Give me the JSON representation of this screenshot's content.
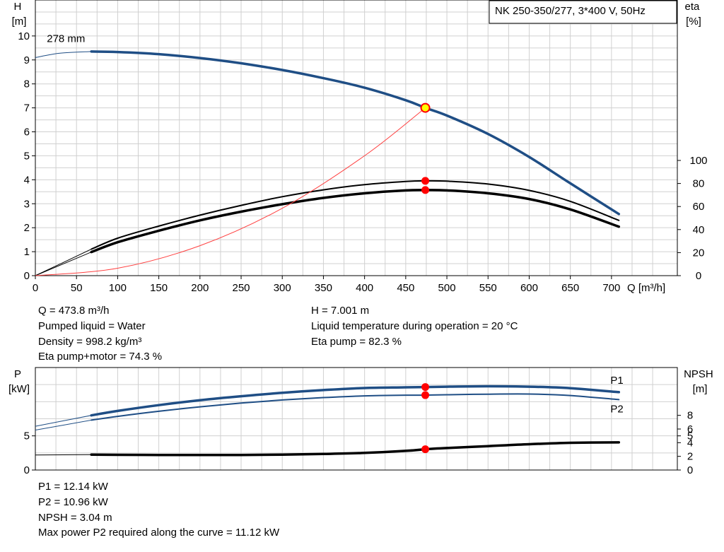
{
  "legend_box": "NK 250-350/277, 3*400 V, 50Hz",
  "info_top_left": [
    "Q = 473.8 m³/h",
    "Pumped liquid = Water",
    "Density = 998.2 kg/m³",
    "Eta pump+motor = 74.3 %"
  ],
  "info_top_right": [
    "H = 7.001 m",
    "Liquid temperature during operation = 20 °C",
    "Eta pump = 82.3 %"
  ],
  "info_bottom": [
    "P1 = 12.14 kW",
    "P2 = 10.96 kW",
    "NPSH = 3.04 m",
    "Max power P2 required along the curve = 11.12 kW"
  ],
  "colors": {
    "head": "#1f4e85",
    "eta": "#000000",
    "system": "#ff4040",
    "duty_point": "#ff0000",
    "duty_fill": "#ffff00",
    "grid": "#d0d0d0"
  },
  "chart_data": [
    {
      "type": "line",
      "title": "",
      "xlabel": "Q [m³/h]",
      "ylabel": "H\n[m]",
      "y2label": "eta\n[%]",
      "xlim": [
        0,
        780
      ],
      "ylim": [
        0,
        11.5
      ],
      "y2lim": [
        0,
        100
      ],
      "xticks": [
        0,
        50,
        100,
        150,
        200,
        250,
        300,
        350,
        400,
        450,
        500,
        550,
        600,
        650,
        700
      ],
      "yticks": [
        0,
        1,
        2,
        3,
        4,
        5,
        6,
        7,
        8,
        9,
        10
      ],
      "y2ticks": [
        0,
        20,
        40,
        60,
        80,
        100
      ],
      "grid": true,
      "annotations": [
        {
          "text": "278 mm",
          "x": 38,
          "y": 9.75
        }
      ],
      "series": [
        {
          "name": "",
          "role": "head",
          "axis": "left",
          "x": [
            0,
            30,
            68,
            100,
            150,
            200,
            250,
            300,
            350,
            400,
            450,
            473.8,
            500,
            550,
            600,
            650,
            709
          ],
          "y": [
            9.1,
            9.28,
            9.35,
            9.33,
            9.24,
            9.08,
            8.86,
            8.58,
            8.24,
            7.84,
            7.32,
            7.0,
            6.68,
            5.91,
            4.95,
            3.85,
            2.57
          ],
          "thin_until_x": 68
        },
        {
          "name": "",
          "role": "eta_pump",
          "axis": "right",
          "x": [
            0,
            68,
            100,
            150,
            200,
            250,
            300,
            350,
            400,
            450,
            473.8,
            500,
            550,
            600,
            650,
            709
          ],
          "y": [
            0,
            23,
            32.5,
            43,
            52.5,
            61,
            68.5,
            74.5,
            79,
            81.8,
            82.3,
            82,
            79.5,
            74,
            64.5,
            48
          ],
          "thin_until_x": 68
        },
        {
          "name": "",
          "role": "eta_pump_motor",
          "axis": "right",
          "x": [
            0,
            68,
            100,
            150,
            200,
            250,
            300,
            350,
            400,
            450,
            473.8,
            500,
            550,
            600,
            650,
            709
          ],
          "y": [
            0,
            20.5,
            29,
            39,
            48,
            55.5,
            62,
            67.5,
            71.5,
            74,
            74.3,
            74,
            71.5,
            66.5,
            57.5,
            42.5
          ],
          "thin_until_x": 68
        },
        {
          "name": "",
          "role": "system",
          "axis": "left",
          "x": [
            0,
            100,
            200,
            300,
            400,
            473.8
          ],
          "y": [
            0,
            0.31,
            1.25,
            2.81,
            5.0,
            7.0
          ]
        }
      ],
      "duty_points": [
        {
          "x": 473.8,
          "y": 7.001,
          "axis": "left",
          "style": "yellow"
        },
        {
          "x": 473.8,
          "y": 82.3,
          "axis": "right",
          "style": "red"
        },
        {
          "x": 473.8,
          "y": 74.3,
          "axis": "right",
          "style": "red"
        }
      ]
    },
    {
      "type": "line",
      "title": "",
      "ylabel": "P\n[kW]",
      "y2label": "NPSH\n[m]",
      "xlim": [
        0,
        780
      ],
      "ylim": [
        0,
        15
      ],
      "y2lim": [
        0,
        15
      ],
      "yticks": [
        0,
        5
      ],
      "y2ticks": [
        0,
        2,
        4,
        5,
        6,
        8
      ],
      "grid": true,
      "series": [
        {
          "name": "P1",
          "axis": "left",
          "x": [
            0,
            68,
            100,
            150,
            200,
            250,
            300,
            350,
            400,
            450,
            473.8,
            500,
            550,
            600,
            650,
            709
          ],
          "y": [
            6.4,
            8.0,
            8.65,
            9.5,
            10.22,
            10.8,
            11.3,
            11.7,
            12.0,
            12.1,
            12.14,
            12.2,
            12.26,
            12.2,
            11.98,
            11.4
          ],
          "thin_until_x": 68
        },
        {
          "name": "P2",
          "axis": "left",
          "x": [
            0,
            68,
            100,
            150,
            200,
            250,
            300,
            350,
            400,
            450,
            473.8,
            500,
            550,
            600,
            650,
            709
          ],
          "y": [
            5.85,
            7.3,
            7.85,
            8.6,
            9.25,
            9.8,
            10.25,
            10.6,
            10.85,
            10.95,
            10.96,
            11.02,
            11.1,
            11.12,
            10.9,
            10.3
          ],
          "thin_until_x": 68
        },
        {
          "name": "",
          "role": "npsh",
          "axis": "right",
          "x": [
            0,
            68,
            100,
            150,
            200,
            250,
            300,
            350,
            400,
            450,
            473.8,
            500,
            550,
            600,
            650,
            709
          ],
          "y": [
            2.2,
            2.25,
            2.22,
            2.2,
            2.19,
            2.2,
            2.25,
            2.35,
            2.5,
            2.8,
            3.04,
            3.22,
            3.5,
            3.78,
            3.98,
            4.05
          ],
          "thin_until_x": 68
        }
      ],
      "duty_points": [
        {
          "x": 473.8,
          "y": 12.14,
          "axis": "left",
          "style": "red"
        },
        {
          "x": 473.8,
          "y": 10.96,
          "axis": "left",
          "style": "red"
        },
        {
          "x": 473.8,
          "y": 3.04,
          "axis": "right",
          "style": "red"
        }
      ]
    }
  ]
}
